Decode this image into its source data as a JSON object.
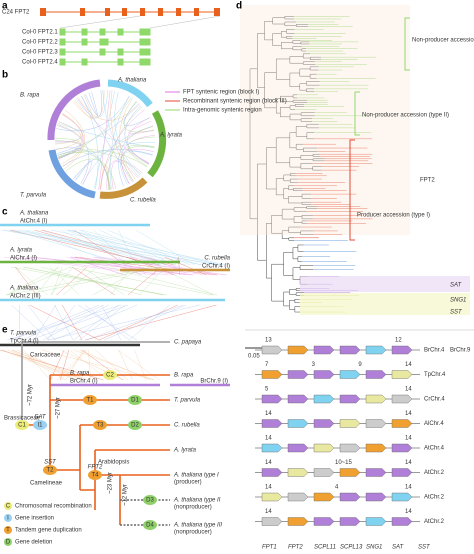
{
  "panel_a": {
    "letter": "a",
    "gene": "C24 FPT2",
    "isoforms": [
      "Col-0 FPT2.1",
      "Col-0 FPT2.2",
      "Col-0 FPT2.3",
      "Col-0 FPT2.4"
    ]
  },
  "panel_b": {
    "letter": "b",
    "species": [
      "A. thaliana",
      "A. lyrata",
      "C. rubella",
      "T. parvula",
      "B. rapa"
    ],
    "legend": [
      "FPT syntenic region (block I)",
      "Recombinant syntenic region (block III)",
      "Intra-genomic syntenic region"
    ]
  },
  "panel_c": {
    "letter": "c",
    "tracks": [
      {
        "species": "A. thaliana",
        "chromosome": "AtChr.4 (I)"
      },
      {
        "species": "C. rubella",
        "chromosome": "CrChr.4 (I)"
      },
      {
        "species": "A. lyrata",
        "chromosome": "AlChr.4 (I)"
      },
      {
        "species": "A. thaliana",
        "chromosome": "AtChr.2 (III)"
      },
      {
        "species": "T. parvula",
        "chromosome": "TpChr.4 (I)"
      },
      {
        "species": "B. rapa",
        "chromosome": "BrChr.4 (I)"
      }
    ],
    "extra_chromosome": "BrChr.9 (I)"
  },
  "panel_d": {
    "letter": "d",
    "clades": [
      "Non-producer accession (type III)",
      "Non-producer accession (type II)",
      "Producer accession (type I)"
    ],
    "gene_label": "FPT2",
    "families": [
      "SAT",
      "SNG1",
      "SST"
    ],
    "scale": "0.05"
  },
  "panel_e": {
    "letter": "e",
    "taxa": [
      "C. papaya",
      "B. rapa",
      "T. parvula",
      "C. rubella",
      "A. lyrata",
      "A. thaliana type I",
      "A. thaliana type II",
      "A. thaliana type III"
    ],
    "taxa_notes": [
      "(producer)",
      "(nonproducer)",
      "(nonproducer)"
    ],
    "families": [
      "Caricaceae",
      "Brassicaceae",
      "Camelineae",
      "Arabidopsis"
    ],
    "times": [
      "~72 Myr",
      "~27 Myr",
      "~23 Myr",
      "~12 Myr"
    ],
    "nodes": [
      "C1",
      "I1",
      "C2",
      "T1",
      "D1",
      "T2",
      "T3",
      "D2",
      "T4",
      "D3",
      "D4"
    ],
    "node_notes": [
      "SAT",
      "SST",
      "FPT2"
    ],
    "legend": [
      {
        "key": "C",
        "text": "Chromosomal recombination"
      },
      {
        "key": "I",
        "text": "Gene insertion"
      },
      {
        "key": "T",
        "text": "Tandem gene duplication"
      },
      {
        "key": "D",
        "text": "Gene deletion"
      }
    ]
  },
  "synteny": {
    "rows": [
      {
        "label": "BrChr.4",
        "numbers": [
          "13"
        ]
      },
      {
        "label": "TpChr.4",
        "numbers": [
          "7",
          "3",
          "9",
          "14"
        ]
      },
      {
        "label": "CrChr.4",
        "numbers": [
          "5",
          "14"
        ]
      },
      {
        "label": "AlChr.4",
        "numbers": [
          "14",
          "14"
        ]
      },
      {
        "label": "AtChr.4",
        "numbers": [
          "14",
          "14"
        ]
      },
      {
        "label": "AtChr.2",
        "numbers": [
          "14",
          "10~15",
          "14"
        ]
      },
      {
        "label": "AtChr.2",
        "numbers": [
          "14",
          "4",
          "14"
        ]
      },
      {
        "label": "AtChr.2",
        "numbers": [
          "14",
          "14"
        ]
      }
    ],
    "extra": {
      "label": "BrChr.9",
      "numbers": [
        "12"
      ]
    },
    "genes": [
      "FPT1",
      "FPT2",
      "SCPL11",
      "SCPL13",
      "SNG1",
      "SAT",
      "SST"
    ]
  }
}
